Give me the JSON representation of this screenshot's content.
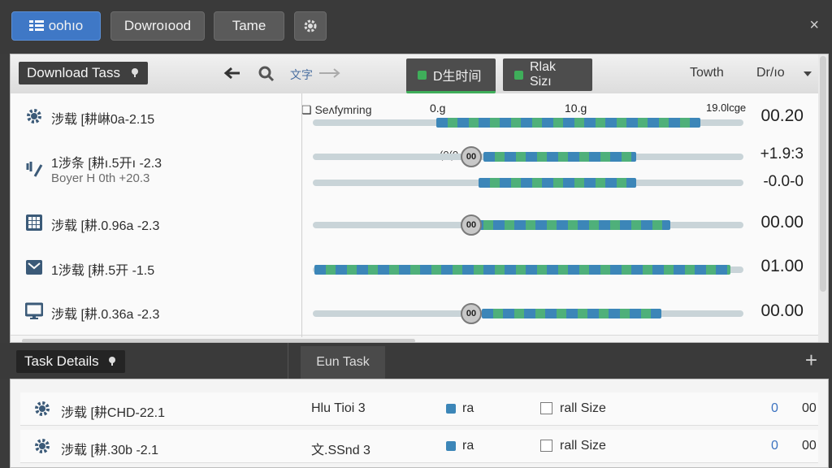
{
  "topbar": {
    "tabs": [
      {
        "label": "oohıo",
        "icon": "list-icon"
      },
      {
        "label": "Dowroıood"
      },
      {
        "label": "Tame"
      }
    ],
    "settings_icon": "gear-icon",
    "close_label": "×"
  },
  "downloads_panel": {
    "title": "Download Tass",
    "back_icon": "arrow-left-icon",
    "search_icon": "search-icon",
    "sort_label": "文字",
    "forward_icon": "arrow-right-icon",
    "filters": [
      {
        "label": "D生时间",
        "color": "#3fae5a"
      },
      {
        "label": "Rlak Sizı",
        "color": "#3fae5a"
      }
    ],
    "col_growth": "Towth",
    "col_dir": "Dr/ıo",
    "dropdown_icon": "caret-down-icon",
    "rows": [
      {
        "icon": "gear-icon",
        "text": "涉载 [耕崊0a-2.15",
        "progress_caption": "Seʌfymring",
        "ticks": [
          "0.g",
          "10.g",
          "19.0lcge"
        ],
        "progress": 0.7,
        "value": "00.20"
      },
      {
        "icon": "transfer-icon",
        "text": "1涉条 [耕ı.5开ı -2.3",
        "subtext": "Boyer H 0th  +20.3",
        "progress": 0.55,
        "knob": "00",
        "knob_prefix": "(0(0",
        "value": "+1.9:3",
        "value2": "-0.0-0"
      },
      {
        "icon": "grid-icon",
        "text": "涉载 [耕.0.96a -2.3",
        "progress": 0.63,
        "knob": "00",
        "value": "00.00"
      },
      {
        "icon": "inbox-icon",
        "text": "1涉载 [耕.5开 -1.5",
        "progress": 0.9,
        "value": "01.00"
      },
      {
        "icon": "monitor-icon",
        "text": "涉载 [耕.0.36a -2.3",
        "progress": 0.61,
        "knob": "00",
        "value": "00.00"
      }
    ]
  },
  "details_panel": {
    "title": "Task Details",
    "run_label": "Eun Task",
    "add_label": "+",
    "rows": [
      {
        "icon": "gear-icon",
        "text": "涉载 [耕CHD-22.1",
        "col2": "Hlu Tioi 3",
        "tag": "ra",
        "checkbox_label": "rall Size",
        "num1": "0",
        "num2": "00"
      },
      {
        "icon": "gear-icon",
        "text": "涉载 [耕.30b -2.1",
        "col2": "文.SSnd 3",
        "tag": "ra",
        "checkbox_label": "rall Size",
        "num1": "0",
        "num2": "00"
      }
    ]
  },
  "colors": {
    "accent": "#3f78c6",
    "progress_blue": "#3c86b8",
    "progress_green": "#4fb07a"
  }
}
